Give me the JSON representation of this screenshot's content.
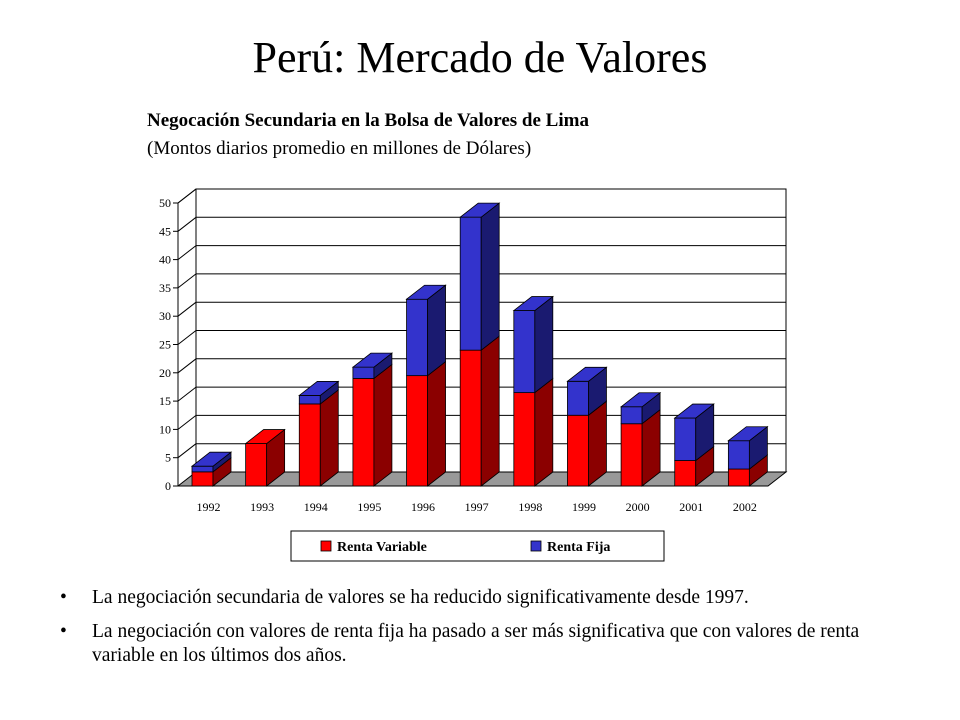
{
  "page": {
    "title": "Perú: Mercado de Valores",
    "bullets": [
      "La negociación secundaria de valores se ha reducido significativamente desde 1997.",
      "La negociación con valores de renta fija ha pasado a ser más significativa que con valores de renta variable en los últimos dos años."
    ]
  },
  "chart_data": {
    "type": "bar",
    "stacked": true,
    "title": "Negocación Secundaria en la Bolsa de Valores de Lima",
    "subtitle": "(Montos diarios promedio en millones de Dólares)",
    "categories": [
      "1992",
      "1993",
      "1994",
      "1995",
      "1996",
      "1997",
      "1998",
      "1999",
      "2000",
      "2001",
      "2002"
    ],
    "series": [
      {
        "name": "Renta Variable",
        "color": "#ff0000",
        "side_color": "#8b0000",
        "values": [
          2.5,
          7.5,
          14.5,
          19,
          19.5,
          24,
          16.5,
          12.5,
          11,
          4.5,
          3
        ]
      },
      {
        "name": "Renta Fija",
        "color": "#3333cc",
        "side_color": "#1a1a70",
        "values": [
          1,
          0,
          1.5,
          2,
          13.5,
          23.5,
          14.5,
          6,
          3,
          7.5,
          5
        ]
      }
    ],
    "ylim": [
      0,
      50
    ],
    "yticks": [
      0,
      5,
      10,
      15,
      20,
      25,
      30,
      35,
      40,
      45,
      50
    ],
    "grid": true,
    "legend_position": "bottom"
  }
}
